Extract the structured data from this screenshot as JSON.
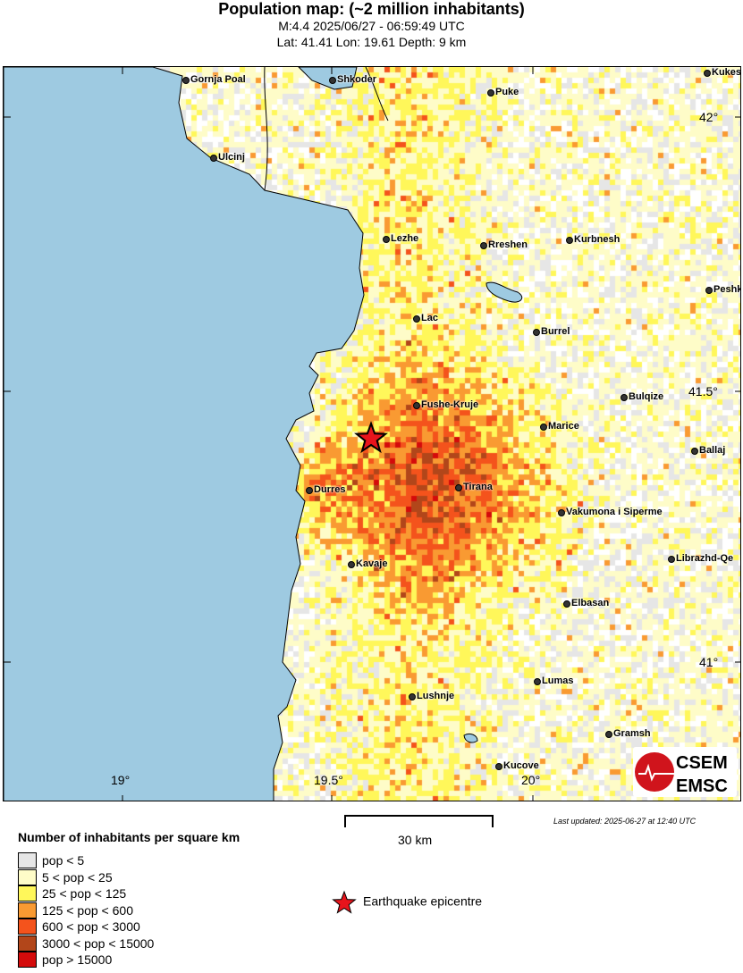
{
  "header": {
    "title": "Population map: (~2 million inhabitants)",
    "subtitle": "M:4.4 2025/06/27 - 06:59:49 UTC",
    "location": "Lat: 41.41 Lon: 19.61 Depth: 9 km"
  },
  "map": {
    "colors": {
      "sea": "#9ecae1",
      "border": "#000000"
    },
    "lon_ticks": [
      "19°",
      "19.5°",
      "20°"
    ],
    "lat_ticks": [
      "42°",
      "41.5°",
      "41°"
    ],
    "cities": [
      "Gornja Poal",
      "Shkoder",
      "Puke",
      "Kukes",
      "Ulcinj",
      "Lezhe",
      "Rreshen",
      "Kurbnesh",
      "Peshk",
      "Lac",
      "Burrel",
      "Fushe-Kruje",
      "Bulqize",
      "Marice",
      "Ballaj",
      "Durres",
      "Tirana",
      "Vakumona i Siperme",
      "Kavaje",
      "Librazhd-Qe",
      "Elbasan",
      "Lumas",
      "Lushnje",
      "Gramsh",
      "Kucove"
    ],
    "epicentre_icon": "red-star-icon"
  },
  "logo": {
    "top": "CSEM",
    "bottom": "EMSC"
  },
  "scale": {
    "label": "30 km"
  },
  "last_updated": "Last updated: 2025-06-27 at 12:40 UTC",
  "legend": {
    "title": "Number of inhabitants per square km",
    "items": [
      {
        "label": "pop < 5",
        "color": "#e6e6e6"
      },
      {
        "label": "5 < pop < 25",
        "color": "#fefcc8"
      },
      {
        "label": "25 < pop < 125",
        "color": "#fff75a"
      },
      {
        "label": "125 < pop < 600",
        "color": "#f99a32"
      },
      {
        "label": "600 < pop < 3000",
        "color": "#f4531c"
      },
      {
        "label": "3000 < pop < 15000",
        "color": "#b2461a"
      },
      {
        "label": "pop > 15000",
        "color": "#d40b0b"
      }
    ],
    "epicentre": "Earthquake epicentre"
  }
}
